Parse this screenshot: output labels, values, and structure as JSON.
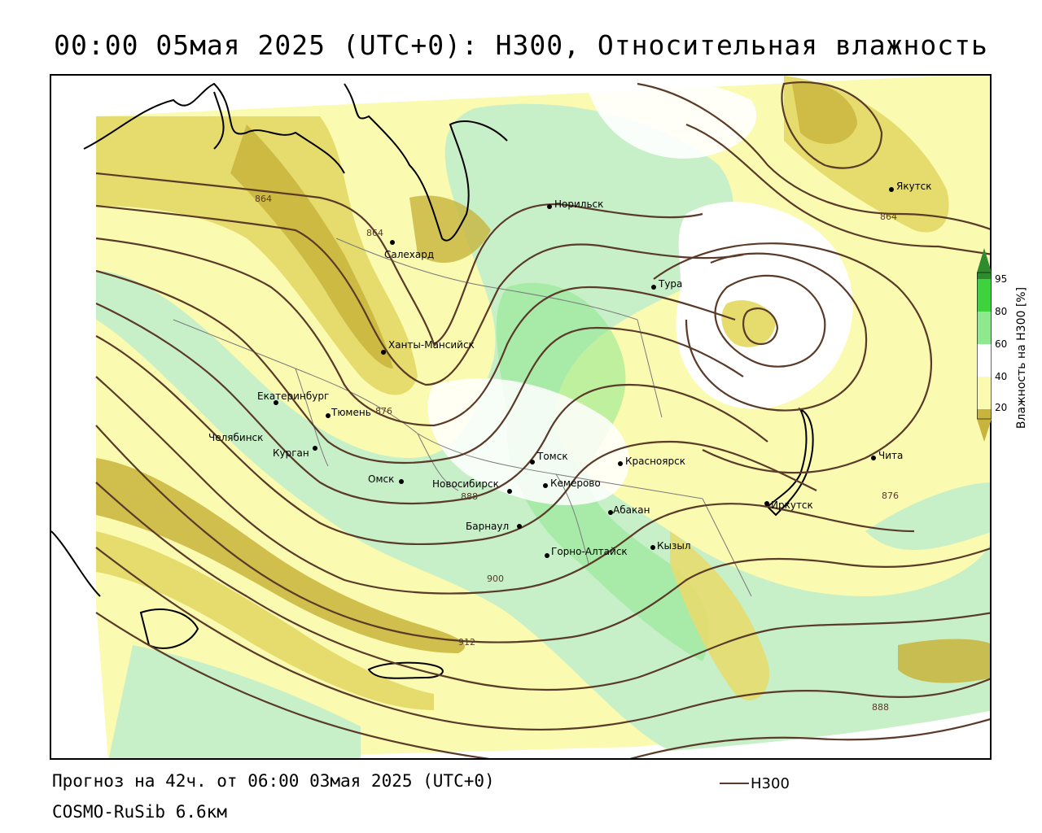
{
  "header": {
    "title": "00:00 05мая 2025 (UTC+0): H300, Относительная влажность"
  },
  "footer": {
    "forecast": "Прогноз на 42ч. от 06:00 03мая 2025 (UTC+0)",
    "model": "COSMO-RuSib 6.6км",
    "legend_label": "H300"
  },
  "colorbar": {
    "title": "Влажность на H300 [%]",
    "ticks": [
      "95",
      "80",
      "60",
      "40",
      "20"
    ],
    "colors": [
      "#2e8b2e",
      "#3fd23f",
      "#8ee88e",
      "#c8f0c8",
      "#ffffff",
      "#fafab0",
      "#e6dc6e",
      "#c8b43c"
    ]
  },
  "map": {
    "cities": [
      {
        "name": "Норильск"
      },
      {
        "name": "Якутск"
      },
      {
        "name": "Салехард"
      },
      {
        "name": "Тура"
      },
      {
        "name": "Ханты-Мансийск"
      },
      {
        "name": "Екатеринбург"
      },
      {
        "name": "Тюмень"
      },
      {
        "name": "Челябинск"
      },
      {
        "name": "Курган"
      },
      {
        "name": "Омск"
      },
      {
        "name": "Новосибирск"
      },
      {
        "name": "Томск"
      },
      {
        "name": "Кемерово"
      },
      {
        "name": "Красноярск"
      },
      {
        "name": "Абакан"
      },
      {
        "name": "Барнаул"
      },
      {
        "name": "Горно-Алтайск"
      },
      {
        "name": "Кызыл"
      },
      {
        "name": "Иркутск"
      },
      {
        "name": "Чита"
      }
    ],
    "contour_labels": [
      {
        "text": "864"
      },
      {
        "text": "864"
      },
      {
        "text": "864"
      },
      {
        "text": "876"
      },
      {
        "text": "876"
      },
      {
        "text": "888"
      },
      {
        "text": "900"
      },
      {
        "text": "912"
      },
      {
        "text": "888"
      }
    ],
    "colors": {
      "contour": "#5a3a28",
      "dry_dark": "#c8b43c",
      "dry_mid": "#e6dc6e",
      "dry_light": "#fafab0",
      "moist_light": "#c8f0c8",
      "moist_mid": "#8ee88e"
    }
  }
}
